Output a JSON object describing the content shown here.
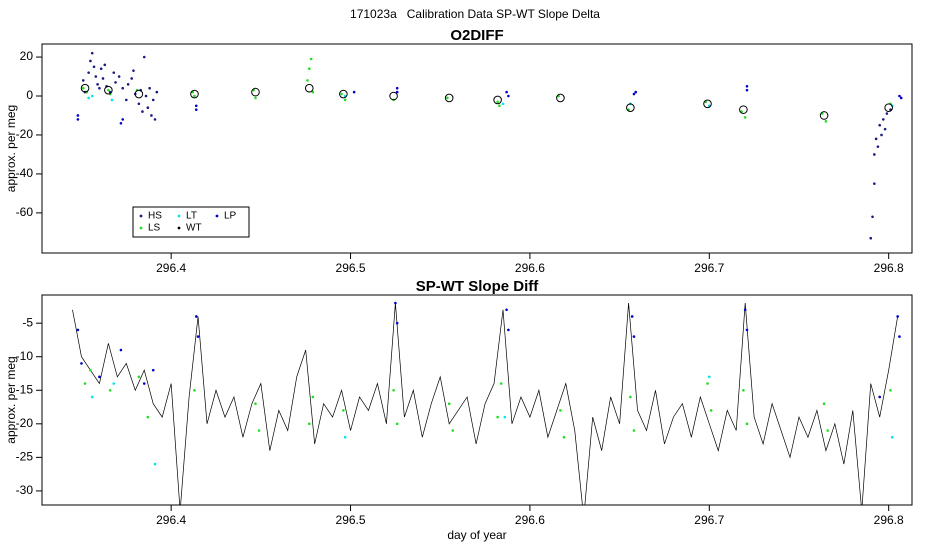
{
  "title": "171023a   Calibration Data SP-WT Slope Delta",
  "chart_data": [
    {
      "type": "scatter",
      "title": "O2DIFF",
      "ylabel": "approx. per meg",
      "xlim": [
        296.328,
        296.813
      ],
      "xticks": [
        296.4,
        296.5,
        296.6,
        296.7,
        296.8
      ],
      "ylim": [
        -80.6,
        26.7
      ],
      "yticks": [
        -60,
        -40,
        -20,
        0,
        20
      ],
      "legend": "bottom-left",
      "series": [
        {
          "name": "HS",
          "color": "#1a1a80",
          "marker": "dot",
          "x": [
            296.351,
            296.352,
            296.354,
            296.355,
            296.356,
            296.357,
            296.358,
            296.359,
            296.36,
            296.361,
            296.362,
            296.363,
            296.364,
            296.366,
            296.368,
            296.369,
            296.371,
            296.373,
            296.375,
            296.376,
            296.378,
            296.379,
            296.38,
            296.382,
            296.383,
            296.384,
            296.385,
            296.386,
            296.387,
            296.388,
            296.389,
            296.39,
            296.391,
            296.392,
            296.79,
            296.791,
            296.792,
            296.792,
            296.793,
            296.794,
            296.795,
            296.796,
            296.797,
            296.798,
            296.799,
            296.801
          ],
          "values": [
            8,
            2,
            12,
            18,
            22,
            15,
            10,
            6,
            4,
            14,
            9,
            16,
            5,
            2,
            12,
            7,
            10,
            4,
            -2,
            6,
            9,
            13,
            1,
            -4,
            3,
            -8,
            20,
            0,
            -6,
            4,
            -10,
            -2,
            -12,
            2,
            -73,
            -62,
            -45,
            -30,
            -22,
            -26,
            -15,
            -20,
            -12,
            -17,
            -9,
            -7
          ]
        },
        {
          "name": "LS",
          "color": "#22dd22",
          "marker": "dot",
          "x": [
            296.351,
            296.353,
            296.365,
            296.366,
            296.381,
            296.412,
            296.413,
            296.446,
            296.447,
            296.476,
            296.477,
            296.478,
            296.479,
            296.495,
            296.497,
            296.524,
            296.554,
            296.582,
            296.583,
            296.616,
            296.655,
            296.656,
            296.698,
            296.718,
            296.72,
            296.763,
            296.765,
            296.801
          ],
          "values": [
            4,
            2,
            3,
            1,
            3,
            2,
            0,
            3,
            -1,
            8,
            14,
            19,
            2,
            1,
            -2,
            -2,
            -1,
            -3,
            -5,
            0,
            -7,
            -4,
            -3,
            -8,
            -11,
            -9,
            -13,
            -4
          ]
        },
        {
          "name": "LT",
          "color": "#00e5ee",
          "marker": "dot",
          "x": [
            296.354,
            296.356,
            296.367,
            296.497,
            296.585,
            296.656,
            296.7,
            296.802
          ],
          "values": [
            -1,
            0,
            -2,
            0,
            -4,
            -4,
            -5,
            -5
          ]
        },
        {
          "name": "WT",
          "color": "#000000",
          "marker": "circle-open",
          "x": [
            296.352,
            296.365,
            296.382,
            296.413,
            296.447,
            296.477,
            296.496,
            296.524,
            296.555,
            296.582,
            296.617,
            296.656,
            296.699,
            296.719,
            296.764,
            296.8
          ],
          "values": [
            4,
            3,
            1,
            1,
            2,
            4,
            1,
            0,
            -1,
            -2,
            -1,
            -6,
            -4,
            -7,
            -10,
            -6
          ]
        },
        {
          "name": "LP",
          "color": "#0000cd",
          "marker": "dot",
          "x": [
            296.348,
            296.348,
            296.372,
            296.373,
            296.414,
            296.414,
            296.502,
            296.526,
            296.526,
            296.587,
            296.588,
            296.658,
            296.659,
            296.721,
            296.721,
            296.806,
            296.807
          ],
          "values": [
            -12,
            -10,
            -14,
            -12,
            -7,
            -5,
            2,
            4,
            2,
            2,
            0,
            1,
            2,
            5,
            3,
            0,
            -1
          ]
        }
      ]
    },
    {
      "type": "line",
      "title": "SP-WT Slope Diff",
      "ylabel": "approx. per meg",
      "xlabel": "day of year",
      "xlim": [
        296.328,
        296.813
      ],
      "xticks": [
        296.4,
        296.5,
        296.6,
        296.7,
        296.8
      ],
      "ylim": [
        -32.1,
        -0.8
      ],
      "yticks": [
        -30,
        -25,
        -20,
        -15,
        -10,
        -5
      ],
      "series": [
        {
          "color": "#000000",
          "type": "line",
          "x": [
            296.345,
            296.35,
            296.355,
            296.36,
            296.365,
            296.37,
            296.375,
            296.38,
            296.385,
            296.39,
            296.395,
            296.4,
            296.405,
            296.41,
            296.415,
            296.42,
            296.425,
            296.43,
            296.435,
            296.44,
            296.445,
            296.45,
            296.455,
            296.46,
            296.465,
            296.47,
            296.475,
            296.48,
            296.485,
            296.49,
            296.495,
            296.5,
            296.505,
            296.51,
            296.515,
            296.52,
            296.525,
            296.53,
            296.535,
            296.54,
            296.545,
            296.55,
            296.555,
            296.56,
            296.565,
            296.57,
            296.575,
            296.58,
            296.585,
            296.59,
            296.595,
            296.6,
            296.605,
            296.61,
            296.615,
            296.62,
            296.625,
            296.63,
            296.635,
            296.64,
            296.645,
            296.65,
            296.655,
            296.66,
            296.665,
            296.67,
            296.675,
            296.68,
            296.685,
            296.69,
            296.695,
            296.7,
            296.705,
            296.71,
            296.715,
            296.72,
            296.725,
            296.73,
            296.735,
            296.74,
            296.745,
            296.75,
            296.755,
            296.76,
            296.765,
            296.77,
            296.775,
            296.78,
            296.785,
            296.79,
            296.795,
            296.8,
            296.805
          ],
          "values": [
            -3,
            -10,
            -12,
            -14,
            -8,
            -13,
            -11,
            -15,
            -12,
            -17,
            -19,
            -14,
            -33,
            -16,
            -4,
            -20,
            -15,
            -19,
            -16,
            -22,
            -17,
            -14,
            -24,
            -18,
            -21,
            -13,
            -9,
            -23,
            -17,
            -19,
            -15,
            -21,
            -16,
            -18,
            -14,
            -20,
            -2,
            -19,
            -15,
            -22,
            -17,
            -13,
            -20,
            -18,
            -16,
            -23,
            -17,
            -14,
            -3,
            -20,
            -16,
            -19,
            -15,
            -22,
            -18,
            -14,
            -21,
            -34,
            -19,
            -24,
            -16,
            -20,
            -2,
            -18,
            -21,
            -15,
            -23,
            -19,
            -17,
            -22,
            -16,
            -20,
            -24,
            -18,
            -21,
            -2,
            -19,
            -23,
            -17,
            -21,
            -25,
            -19,
            -22,
            -18,
            -24,
            -20,
            -26,
            -18,
            -33,
            -14,
            -19,
            -12,
            -4
          ]
        },
        {
          "color": "#22dd22",
          "type": "scatter",
          "marker": "dot",
          "x": [
            296.352,
            296.355,
            296.366,
            296.382,
            296.387,
            296.413,
            296.447,
            296.449,
            296.477,
            296.479,
            296.496,
            296.524,
            296.526,
            296.555,
            296.557,
            296.582,
            296.584,
            296.617,
            296.619,
            296.656,
            296.658,
            296.699,
            296.701,
            296.719,
            296.721,
            296.764,
            296.766,
            296.801
          ],
          "values": [
            -14,
            -12,
            -15,
            -13,
            -19,
            -15,
            -17,
            -21,
            -20,
            -16,
            -18,
            -15,
            -20,
            -17,
            -21,
            -19,
            -14,
            -18,
            -22,
            -16,
            -21,
            -14,
            -18,
            -15,
            -20,
            -17,
            -21,
            -15
          ]
        },
        {
          "color": "#0000cd",
          "type": "scatter",
          "marker": "dot",
          "x": [
            296.348,
            296.35,
            296.36,
            296.372,
            296.385,
            296.39,
            296.414,
            296.415,
            296.525,
            296.526,
            296.587,
            296.588,
            296.657,
            296.658,
            296.72,
            296.721,
            296.795,
            296.805,
            296.806
          ],
          "values": [
            -6,
            -11,
            -13,
            -9,
            -14,
            -12,
            -4,
            -7,
            -2,
            -5,
            -3,
            -6,
            -4,
            -7,
            -3,
            -6,
            -16,
            -4,
            -7
          ]
        },
        {
          "color": "#00e5ee",
          "type": "scatter",
          "marker": "dot",
          "x": [
            296.356,
            296.368,
            296.391,
            296.497,
            296.586,
            296.7,
            296.802
          ],
          "values": [
            -16,
            -14,
            -26,
            -22,
            -19,
            -13,
            -22
          ]
        }
      ]
    }
  ]
}
